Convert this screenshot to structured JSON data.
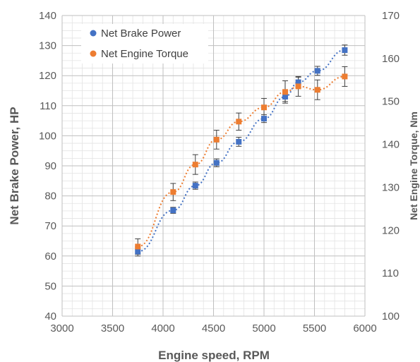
{
  "chart_data": {
    "type": "scatter",
    "xlabel": "Engine speed, RPM",
    "ylabel": "Net Brake Power, HP",
    "y2label": "Net Engine Torque, Nm",
    "xlim": [
      3000,
      6000
    ],
    "ylim": [
      40,
      140
    ],
    "y2lim": [
      100,
      170
    ],
    "x_ticks": [
      3000,
      3500,
      4000,
      4500,
      5000,
      5500,
      6000
    ],
    "y_ticks": [
      40,
      50,
      60,
      70,
      80,
      90,
      100,
      110,
      120,
      130,
      140
    ],
    "y2_ticks": [
      100,
      110,
      120,
      130,
      140,
      150,
      160,
      170
    ],
    "grid": true,
    "legend_position": "top-left",
    "series": [
      {
        "name": "Net Brake Power",
        "axis": "left",
        "color": "#4472C4",
        "marker": "square",
        "trendline": "dotted",
        "x": [
          3750,
          4100,
          4320,
          4530,
          4750,
          5000,
          5210,
          5340,
          5530,
          5800
        ],
        "y": [
          61.5,
          75.2,
          83.4,
          91.0,
          98.0,
          105.7,
          113.0,
          117.8,
          121.6,
          128.5
        ],
        "error": [
          1.5,
          1.0,
          1.2,
          1.3,
          1.5,
          1.3,
          1.6,
          1.7,
          1.5,
          1.7
        ]
      },
      {
        "name": "Net Engine Torque",
        "axis": "right",
        "color": "#ED7D31",
        "marker": "circle",
        "trendline": "dotted",
        "x": [
          3750,
          4100,
          4320,
          4530,
          4750,
          5000,
          5210,
          5340,
          5530,
          5800
        ],
        "y": [
          116.2,
          128.9,
          135.3,
          141.1,
          145.3,
          148.6,
          152.2,
          153.5,
          152.7,
          155.8
        ],
        "error": [
          1.8,
          2.0,
          2.3,
          2.2,
          2.0,
          2.1,
          2.6,
          2.3,
          2.3,
          2.3
        ]
      }
    ]
  }
}
